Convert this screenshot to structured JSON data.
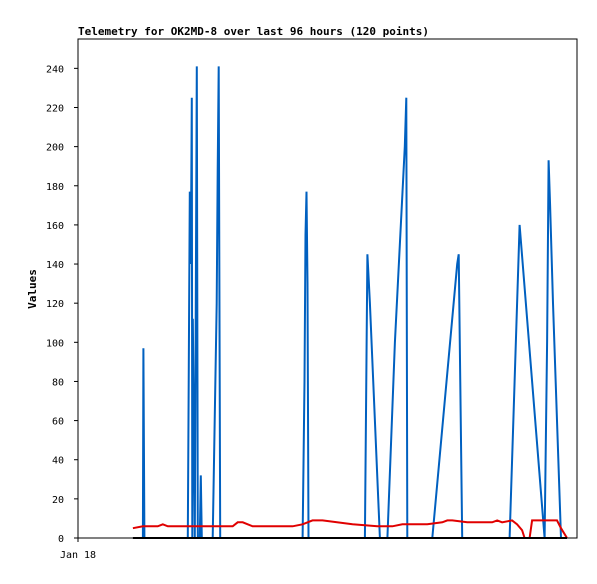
{
  "chart_data": {
    "type": "line",
    "title": "Telemetry for OK2MD-8 over last 96 hours (120 points)",
    "xlabel": "",
    "ylabel": "Values",
    "ylim": [
      0,
      255
    ],
    "yticks": [
      0,
      20,
      40,
      60,
      80,
      100,
      120,
      140,
      160,
      180,
      200,
      220,
      240
    ],
    "xlim": [
      0,
      100
    ],
    "xticks": [
      {
        "x": 0,
        "label": "Jan 18"
      }
    ],
    "grid": false,
    "legend": "none",
    "series": [
      {
        "color": "#0060c0",
        "points": [
          [
            13.0,
            0
          ],
          [
            13.1,
            97
          ],
          [
            13.2,
            48
          ],
          [
            13.3,
            0
          ],
          [
            22.0,
            0
          ],
          [
            22.2,
            88
          ],
          [
            22.4,
            177
          ],
          [
            22.6,
            140
          ],
          [
            22.8,
            225
          ],
          [
            22.9,
            0
          ],
          [
            23.0,
            112
          ],
          [
            23.2,
            60
          ],
          [
            23.4,
            0
          ],
          [
            23.6,
            121
          ],
          [
            23.8,
            241
          ],
          [
            24.0,
            0
          ],
          [
            24.4,
            0
          ],
          [
            24.6,
            32
          ],
          [
            24.8,
            0
          ],
          [
            27.0,
            0
          ],
          [
            27.4,
            60
          ],
          [
            27.8,
            120
          ],
          [
            28.0,
            188
          ],
          [
            28.2,
            241
          ],
          [
            28.5,
            0
          ],
          [
            45.0,
            0
          ],
          [
            45.4,
            80
          ],
          [
            45.6,
            155
          ],
          [
            45.8,
            177
          ],
          [
            46.0,
            130
          ],
          [
            46.2,
            0
          ],
          [
            57.5,
            0
          ],
          [
            58.0,
            145
          ],
          [
            58.5,
            120
          ],
          [
            60.5,
            0
          ],
          [
            62.0,
            0
          ],
          [
            63.5,
            100
          ],
          [
            65.5,
            200
          ],
          [
            65.8,
            225
          ],
          [
            66.0,
            0
          ],
          [
            71.0,
            0
          ],
          [
            76.0,
            140
          ],
          [
            76.3,
            145
          ],
          [
            77.0,
            0
          ],
          [
            86.5,
            0
          ],
          [
            88.5,
            160
          ],
          [
            93.5,
            0
          ],
          [
            94.0,
            100
          ],
          [
            94.3,
            193
          ],
          [
            94.6,
            170
          ],
          [
            95.2,
            120
          ],
          [
            96.8,
            0
          ]
        ]
      },
      {
        "color": "#e00000",
        "points": [
          [
            11.0,
            5
          ],
          [
            13.0,
            6
          ],
          [
            16.0,
            6
          ],
          [
            17.0,
            7
          ],
          [
            18.0,
            6
          ],
          [
            21.0,
            6
          ],
          [
            26.0,
            6
          ],
          [
            29.0,
            6
          ],
          [
            31.0,
            6
          ],
          [
            32.0,
            8
          ],
          [
            33.0,
            8
          ],
          [
            35.0,
            6
          ],
          [
            40.0,
            6
          ],
          [
            43.0,
            6
          ],
          [
            45.0,
            7
          ],
          [
            47.0,
            9
          ],
          [
            49.0,
            9
          ],
          [
            55.0,
            7
          ],
          [
            60.0,
            6
          ],
          [
            63.0,
            6
          ],
          [
            65.0,
            7
          ],
          [
            70.0,
            7
          ],
          [
            73.0,
            8
          ],
          [
            74.0,
            9
          ],
          [
            75.0,
            9
          ],
          [
            78.0,
            8
          ],
          [
            83.0,
            8
          ],
          [
            84.0,
            9
          ],
          [
            85.0,
            8
          ],
          [
            87.0,
            9
          ],
          [
            88.0,
            7
          ],
          [
            89.0,
            4
          ],
          [
            89.5,
            0
          ],
          [
            90.5,
            0
          ],
          [
            91.0,
            9
          ],
          [
            95.0,
            9
          ],
          [
            96.0,
            9
          ],
          [
            96.8,
            5
          ],
          [
            98.0,
            0
          ]
        ]
      },
      {
        "color": "#000000",
        "points": [
          [
            11.0,
            0
          ],
          [
            98.0,
            0
          ]
        ]
      }
    ]
  }
}
